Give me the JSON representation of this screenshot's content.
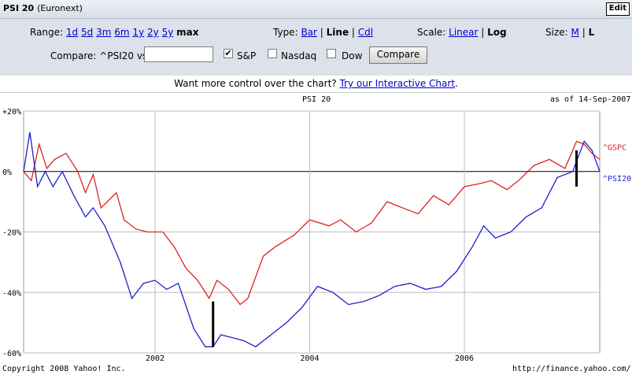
{
  "window": {
    "title": "PSI 20",
    "subtitle": "(Euronext)",
    "edit_label": "Edit"
  },
  "controls": {
    "range_label": "Range:",
    "range_options": [
      "1d",
      "5d",
      "3m",
      "6m",
      "1y",
      "2y",
      "5y",
      "max"
    ],
    "range_selected": "max",
    "type_label": "Type:",
    "type_options": [
      "Bar",
      "Line",
      "Cdl"
    ],
    "type_selected": "Line",
    "scale_label": "Scale:",
    "scale_options": [
      "Linear",
      "Log"
    ],
    "scale_selected": "Log",
    "size_label": "Size:",
    "size_options": [
      "M",
      "L"
    ],
    "size_selected": "L",
    "compare_label": "Compare: ^PSI20 vs",
    "compare_input_value": "",
    "compare_checks": [
      {
        "label": "S&P",
        "checked": true
      },
      {
        "label": "Nasdaq",
        "checked": false
      },
      {
        "label": "Dow",
        "checked": false
      }
    ],
    "compare_button": "Compare",
    "check_mark": "✔"
  },
  "promo": {
    "text": "Want more control over the chart?",
    "link": "Try our Interactive Chart",
    "end": "."
  },
  "chart_header": {
    "title": "PSI 20",
    "as_of": "as of 14-Sep-2007"
  },
  "footer": {
    "copyright": "Copyright 2008 Yahoo! Inc.",
    "url": "http://finance.yahoo.com/"
  },
  "chart_data": {
    "type": "line",
    "title": "PSI 20",
    "scale": "log",
    "ylim": [
      -60,
      20
    ],
    "y_ticks": [
      20,
      0,
      -20,
      -40,
      -60
    ],
    "y_tick_labels": [
      "+20%",
      "0%",
      "-20%",
      "-40%",
      "-60%"
    ],
    "xlim": [
      2000.3,
      2007.75
    ],
    "x_ticks": [
      2002,
      2004,
      2006
    ],
    "x_tick_labels": [
      "2002",
      "2004",
      "2006"
    ],
    "grid": true,
    "legend": "right, at line ends",
    "series": [
      {
        "name": "^GSPC",
        "color": "#dd2222",
        "x": [
          2000.3,
          2000.4,
          2000.5,
          2000.6,
          2000.7,
          2000.85,
          2001.0,
          2001.1,
          2001.2,
          2001.3,
          2001.5,
          2001.6,
          2001.75,
          2001.9,
          2002.1,
          2002.25,
          2002.4,
          2002.55,
          2002.7,
          2002.8,
          2002.95,
          2003.1,
          2003.2,
          2003.4,
          2003.55,
          2003.8,
          2004.0,
          2004.25,
          2004.4,
          2004.6,
          2004.8,
          2005.0,
          2005.2,
          2005.4,
          2005.6,
          2005.8,
          2006.0,
          2006.2,
          2006.35,
          2006.55,
          2006.7,
          2006.9,
          2007.1,
          2007.3,
          2007.45,
          2007.55,
          2007.65,
          2007.75
        ],
        "values": [
          0,
          -3,
          9,
          1,
          4,
          6,
          0,
          -7,
          -1,
          -12,
          -7,
          -16,
          -19,
          -20,
          -20,
          -25,
          -32,
          -36,
          -42,
          -36,
          -39,
          -44,
          -42,
          -28,
          -25,
          -21,
          -16,
          -18,
          -16,
          -20,
          -17,
          -10,
          -12,
          -14,
          -8,
          -11,
          -5,
          -4,
          -3,
          -6,
          -3,
          2,
          4,
          1,
          10,
          9,
          6,
          4
        ]
      },
      {
        "name": "^PSI20",
        "color": "#1f1fcc",
        "x": [
          2000.3,
          2000.38,
          2000.48,
          2000.58,
          2000.68,
          2000.8,
          2000.95,
          2001.1,
          2001.2,
          2001.35,
          2001.55,
          2001.7,
          2001.85,
          2002.0,
          2002.15,
          2002.3,
          2002.5,
          2002.65,
          2002.75,
          2002.85,
          2003.0,
          2003.15,
          2003.3,
          2003.5,
          2003.7,
          2003.9,
          2004.1,
          2004.3,
          2004.5,
          2004.7,
          2004.9,
          2005.1,
          2005.3,
          2005.5,
          2005.7,
          2005.9,
          2006.1,
          2006.25,
          2006.4,
          2006.6,
          2006.8,
          2007.0,
          2007.2,
          2007.4,
          2007.55,
          2007.65,
          2007.75
        ],
        "values": [
          0,
          13,
          -5,
          0,
          -5,
          0,
          -8,
          -15,
          -12,
          -18,
          -30,
          -42,
          -37,
          -36,
          -39,
          -37,
          -52,
          -58,
          -58,
          -54,
          -55,
          -56,
          -58,
          -54,
          -50,
          -45,
          -38,
          -40,
          -44,
          -43,
          -41,
          -38,
          -37,
          -39,
          -38,
          -33,
          -25,
          -18,
          -22,
          -20,
          -15,
          -12,
          -2,
          0,
          10,
          7,
          0
        ]
      }
    ],
    "annotations": [
      {
        "x": 2002.75,
        "y_from": -43,
        "y_to": -58
      },
      {
        "x": 2007.45,
        "y_from": 7,
        "y_to": -5
      }
    ]
  }
}
